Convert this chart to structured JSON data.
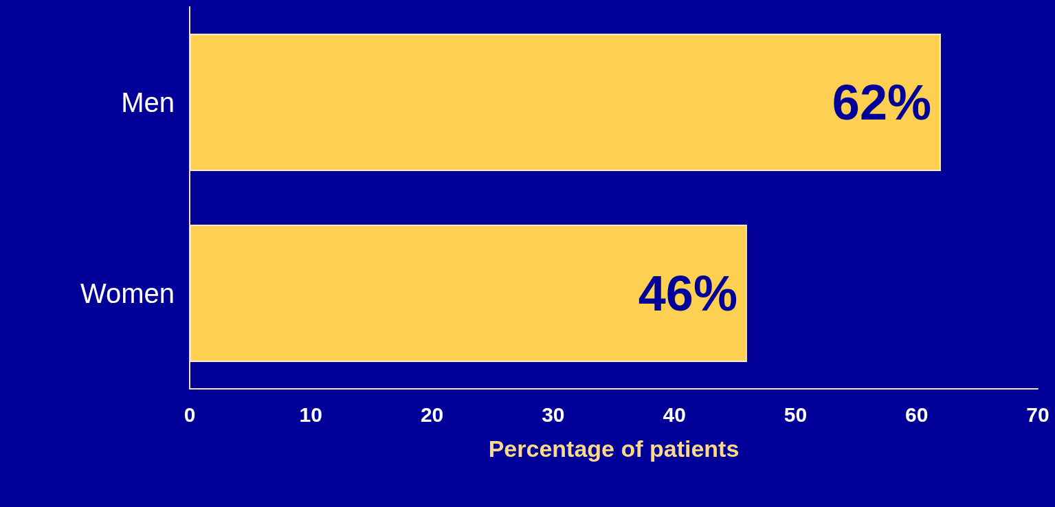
{
  "chart_data": {
    "type": "bar",
    "orientation": "horizontal",
    "xlabel": "Percentage of patients",
    "categories": [
      "Men",
      "Women"
    ],
    "values": [
      62,
      46
    ],
    "value_labels": [
      "62%",
      "46%"
    ],
    "color": "#fdd052",
    "xlim": [
      0,
      70
    ],
    "xticks": [
      0,
      10,
      20,
      30,
      40,
      50,
      60,
      70
    ],
    "grid": false
  }
}
